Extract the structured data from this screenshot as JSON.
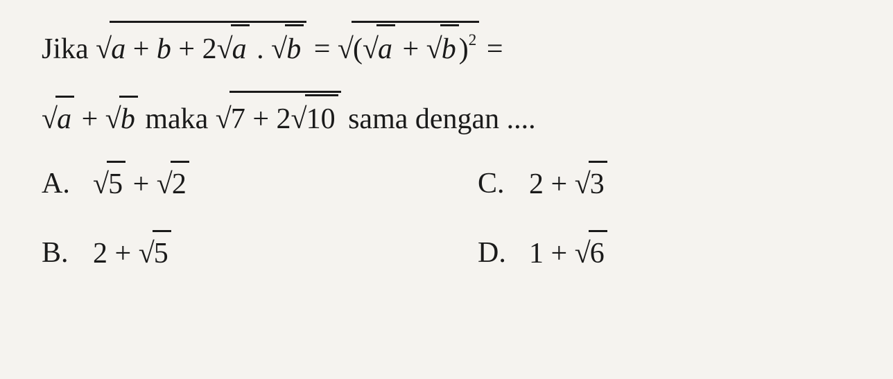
{
  "background_color": "#f5f3ef",
  "text_color": "#1a1a1a",
  "font_family": "Georgia, 'Times New Roman', serif",
  "font_size_pt": 32,
  "question": {
    "prefix": "Jika ",
    "connector": " maka ",
    "suffix": " sama dengan ....",
    "eq": "=",
    "plus": "+",
    "dot": ".",
    "two": "2",
    "sq": "2",
    "lparen": "(",
    "rparen": ")",
    "a": "a",
    "b": "b",
    "val7": "7",
    "val10": "10"
  },
  "options": [
    {
      "letter": "A.",
      "lhs_value": "5",
      "join": "+",
      "rhs_value": "2",
      "lhs_is_sqrt": true,
      "rhs_is_sqrt": true
    },
    {
      "letter": "C.",
      "lhs_value": "2",
      "join": "+",
      "rhs_value": "3",
      "lhs_is_sqrt": false,
      "rhs_is_sqrt": true
    },
    {
      "letter": "B.",
      "lhs_value": "2",
      "join": "+",
      "rhs_value": "5",
      "lhs_is_sqrt": false,
      "rhs_is_sqrt": true
    },
    {
      "letter": "D.",
      "lhs_value": "1",
      "join": "+",
      "rhs_value": "6",
      "lhs_is_sqrt": false,
      "rhs_is_sqrt": true
    }
  ]
}
